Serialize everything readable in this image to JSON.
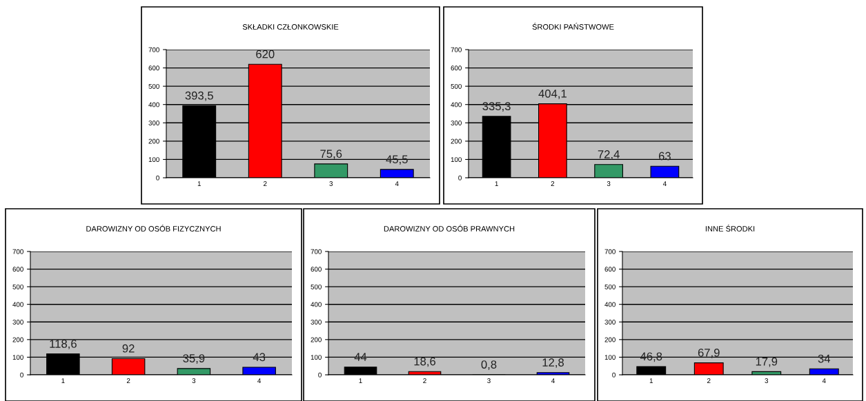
{
  "chart_data": [
    {
      "type": "bar",
      "title": "SKŁADKI CZŁONKOWSKIE",
      "categories": [
        "1",
        "2",
        "3",
        "4"
      ],
      "values": [
        393.5,
        620,
        75.6,
        45.5
      ],
      "colors": [
        "#000000",
        "#ff0000",
        "#339966",
        "#0000ff"
      ],
      "value_labels": [
        "393,5",
        "620",
        "75,6",
        "45,5"
      ],
      "ylim": [
        0,
        700
      ],
      "yticks": [
        0,
        100,
        200,
        300,
        400,
        500,
        600,
        700
      ],
      "grid": "y",
      "legend": false
    },
    {
      "type": "bar",
      "title": "ŚRODKI PAŃSTWOWE",
      "categories": [
        "1",
        "2",
        "3",
        "4"
      ],
      "values": [
        335.3,
        404.1,
        72.4,
        63
      ],
      "colors": [
        "#000000",
        "#ff0000",
        "#339966",
        "#0000ff"
      ],
      "value_labels": [
        "335,3",
        "404,1",
        "72,4",
        "63"
      ],
      "ylim": [
        0,
        700
      ],
      "yticks": [
        0,
        100,
        200,
        300,
        400,
        500,
        600,
        700
      ],
      "grid": "y",
      "legend": false
    },
    {
      "type": "bar",
      "title": "DAROWIZNY OD OSÓB FIZYCZNYCH",
      "categories": [
        "1",
        "2",
        "3",
        "4"
      ],
      "values": [
        118.6,
        92,
        35.9,
        43
      ],
      "colors": [
        "#000000",
        "#ff0000",
        "#339966",
        "#0000ff"
      ],
      "value_labels": [
        "118,6",
        "92",
        "35,9",
        "43"
      ],
      "ylim": [
        0,
        700
      ],
      "yticks": [
        0,
        100,
        200,
        300,
        400,
        500,
        600,
        700
      ],
      "grid": "y",
      "legend": false
    },
    {
      "type": "bar",
      "title": "DAROWIZNY OD OSÓB PRAWNYCH",
      "categories": [
        "1",
        "2",
        "3",
        "4"
      ],
      "values": [
        44,
        18.6,
        0.8,
        12.8
      ],
      "colors": [
        "#000000",
        "#ff0000",
        "#339966",
        "#0000ff"
      ],
      "value_labels": [
        "44",
        "18,6",
        "0,8",
        "12,8"
      ],
      "ylim": [
        0,
        700
      ],
      "yticks": [
        0,
        100,
        200,
        300,
        400,
        500,
        600,
        700
      ],
      "grid": "y",
      "legend": false
    },
    {
      "type": "bar",
      "title": "INNE ŚRODKI",
      "categories": [
        "1",
        "2",
        "3",
        "4"
      ],
      "values": [
        46.8,
        67.9,
        17.9,
        34
      ],
      "colors": [
        "#000000",
        "#ff0000",
        "#339966",
        "#0000ff"
      ],
      "value_labels": [
        "46,8",
        "67,9",
        "17,9",
        "34"
      ],
      "ylim": [
        0,
        700
      ],
      "yticks": [
        0,
        100,
        200,
        300,
        400,
        500,
        600,
        700
      ],
      "grid": "y",
      "legend": false
    }
  ]
}
